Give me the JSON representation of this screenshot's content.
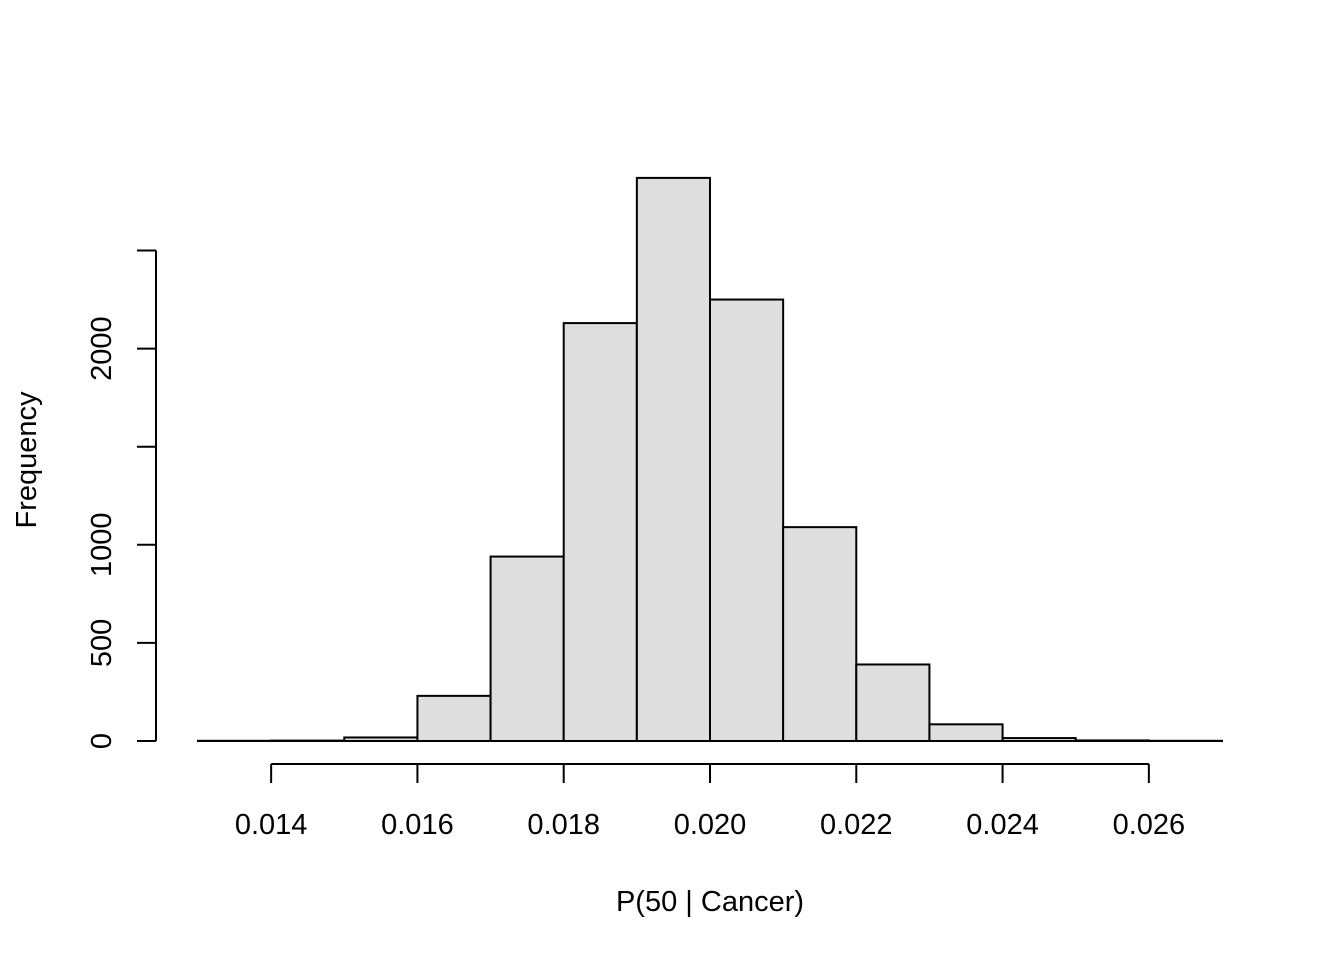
{
  "chart_data": {
    "type": "bar",
    "subtype": "histogram",
    "title": "",
    "xlabel": "P(50 | Cancer)",
    "ylabel": "Frequency",
    "xlim": [
      0.013,
      0.027
    ],
    "ylim": [
      0,
      2500
    ],
    "x_ticks": [
      0.014,
      0.016,
      0.018,
      0.02,
      0.022,
      0.024,
      0.026
    ],
    "x_tick_labels": [
      "0.014",
      "0.016",
      "0.018",
      "0.020",
      "0.022",
      "0.024",
      "0.026"
    ],
    "y_ticks": [
      0,
      500,
      1000,
      1500,
      2000,
      2500
    ],
    "y_tick_labels": [
      "0",
      "500",
      "1000",
      "",
      "2000",
      ""
    ],
    "bin_edges": [
      0.013,
      0.014,
      0.015,
      0.016,
      0.017,
      0.018,
      0.019,
      0.02,
      0.021,
      0.022,
      0.023,
      0.024,
      0.025,
      0.026,
      0.027
    ],
    "values": [
      1,
      2,
      18,
      230,
      940,
      2130,
      2870,
      2250,
      1090,
      390,
      85,
      15,
      3,
      1
    ],
    "grid": false,
    "legend": "none",
    "colors": {
      "bar_fill": "#dedede",
      "bar_stroke": "#000000"
    }
  }
}
